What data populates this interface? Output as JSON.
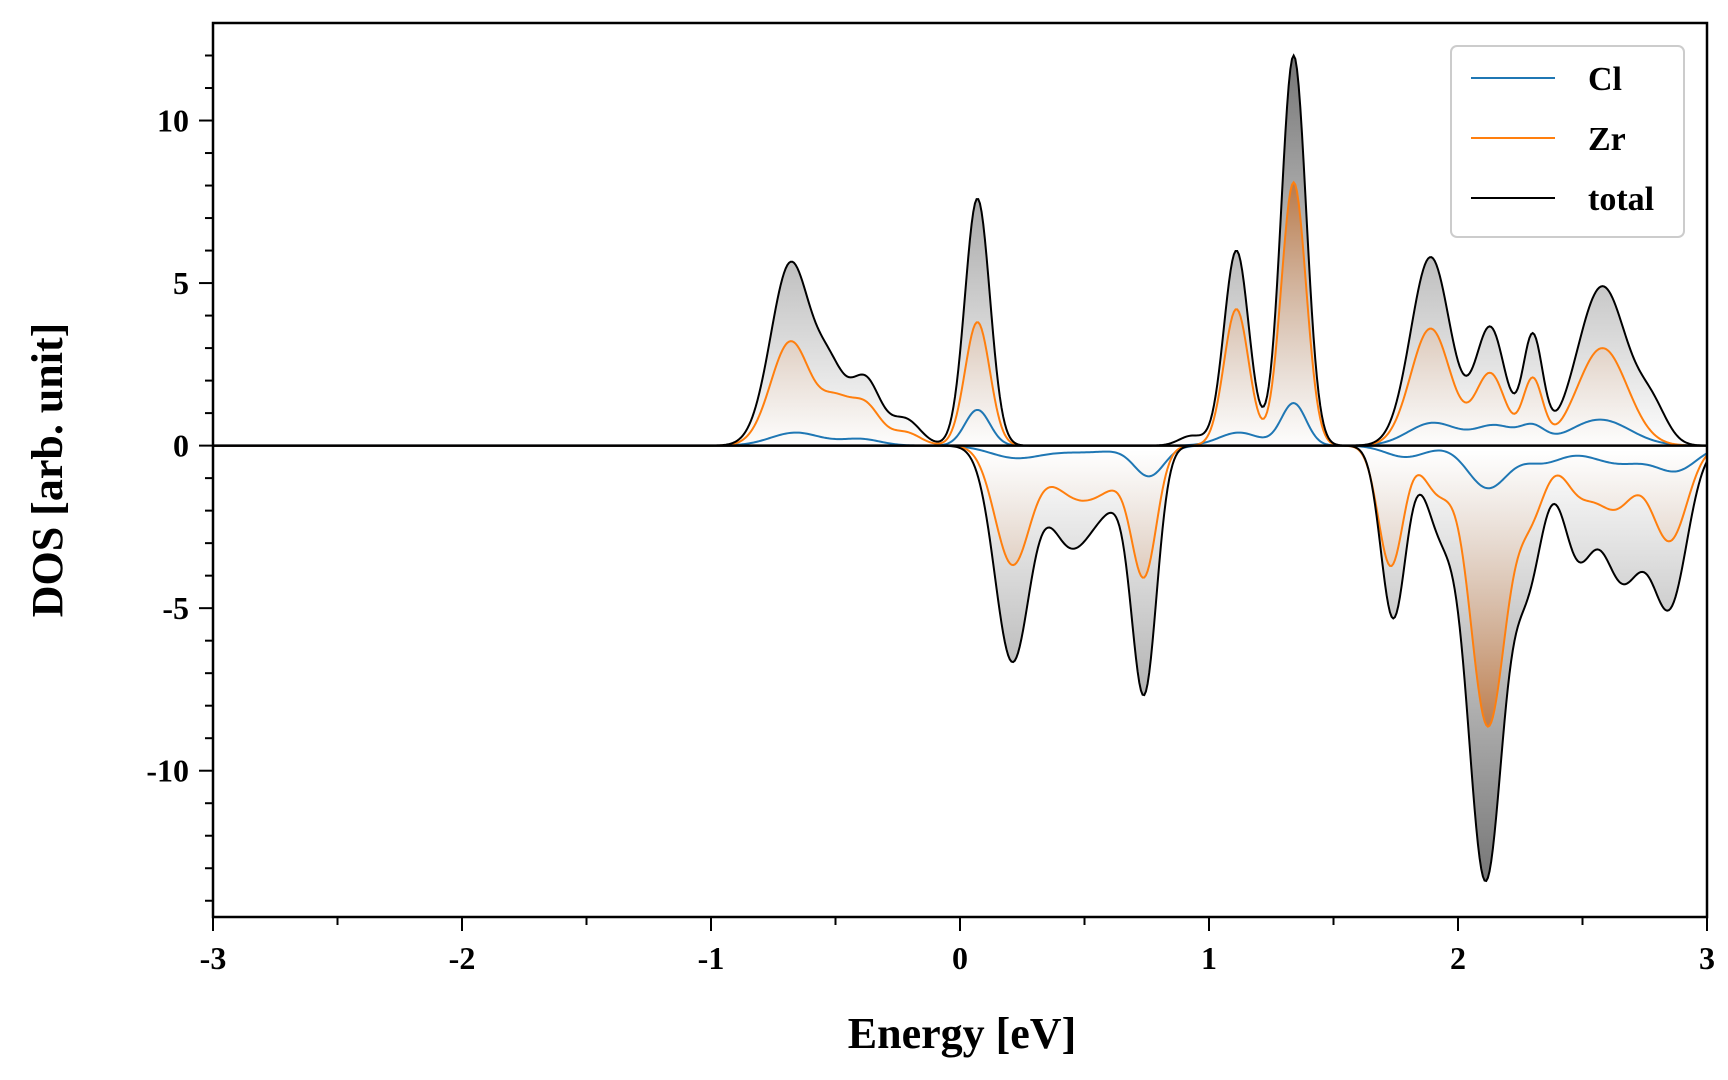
{
  "chart_data": {
    "type": "area",
    "xlabel": "Energy [eV]",
    "ylabel": "DOS [arb. unit]",
    "xlim": [
      -3,
      3
    ],
    "ylim": [
      -14.5,
      13
    ],
    "x_ticks": [
      -3,
      -2,
      -1,
      0,
      1,
      2,
      3
    ],
    "y_ticks": [
      10,
      5,
      0,
      -5,
      -10
    ],
    "legend": {
      "placement": "top-right",
      "entries": [
        "Cl",
        "Zr",
        "total"
      ]
    },
    "grid": false,
    "colors": {
      "Cl": "#1f77b4",
      "Zr": "#ff7f0e",
      "total": "#000000",
      "zr_fill": "#b8682a",
      "total_fill": "#7a7a7a"
    },
    "peaks": {
      "up": {
        "total": [
          [
            -0.68,
            5.6,
            0.08
          ],
          [
            -0.52,
            2.0,
            0.06
          ],
          [
            -0.38,
            2.0,
            0.06
          ],
          [
            -0.22,
            0.8,
            0.06
          ],
          [
            0.07,
            7.6,
            0.05
          ],
          [
            0.93,
            0.3,
            0.05
          ],
          [
            1.11,
            6.0,
            0.05
          ],
          [
            1.34,
            12.0,
            0.05
          ],
          [
            1.89,
            5.8,
            0.08
          ],
          [
            2.13,
            3.6,
            0.06
          ],
          [
            2.3,
            3.3,
            0.04
          ],
          [
            2.58,
            4.9,
            0.1
          ],
          [
            2.78,
            1.0,
            0.06
          ]
        ],
        "Zr": [
          [
            -0.68,
            3.2,
            0.08
          ],
          [
            -0.5,
            1.2,
            0.06
          ],
          [
            -0.38,
            1.2,
            0.06
          ],
          [
            -0.22,
            0.4,
            0.06
          ],
          [
            0.07,
            3.8,
            0.05
          ],
          [
            1.11,
            4.2,
            0.05
          ],
          [
            1.34,
            8.1,
            0.05
          ],
          [
            1.89,
            3.6,
            0.08
          ],
          [
            2.13,
            2.2,
            0.06
          ],
          [
            2.3,
            2.0,
            0.04
          ],
          [
            2.58,
            3.0,
            0.1
          ]
        ],
        "Cl": [
          [
            -0.66,
            0.4,
            0.1
          ],
          [
            -0.4,
            0.2,
            0.08
          ],
          [
            0.07,
            1.1,
            0.05
          ],
          [
            1.12,
            0.4,
            0.08
          ],
          [
            1.34,
            1.3,
            0.05
          ],
          [
            1.9,
            0.7,
            0.1
          ],
          [
            2.15,
            0.6,
            0.08
          ],
          [
            2.3,
            0.5,
            0.05
          ],
          [
            2.57,
            0.8,
            0.12
          ]
        ]
      },
      "down": {
        "total": [
          [
            0.21,
            6.6,
            0.07
          ],
          [
            0.43,
            2.5,
            0.08
          ],
          [
            0.58,
            1.7,
            0.1
          ],
          [
            0.74,
            7.2,
            0.05
          ],
          [
            1.74,
            5.3,
            0.05
          ],
          [
            1.93,
            2.5,
            0.06
          ],
          [
            2.11,
            13.3,
            0.07
          ],
          [
            2.28,
            4.0,
            0.06
          ],
          [
            2.48,
            3.2,
            0.06
          ],
          [
            2.66,
            4.1,
            0.08
          ],
          [
            2.85,
            4.8,
            0.07
          ]
        ],
        "Zr": [
          [
            0.21,
            3.6,
            0.07
          ],
          [
            0.45,
            1.3,
            0.1
          ],
          [
            0.6,
            0.9,
            0.1
          ],
          [
            0.74,
            3.7,
            0.05
          ],
          [
            1.73,
            3.7,
            0.05
          ],
          [
            1.92,
            1.4,
            0.06
          ],
          [
            2.12,
            8.6,
            0.07
          ],
          [
            2.29,
            2.1,
            0.06
          ],
          [
            2.48,
            1.2,
            0.06
          ],
          [
            2.63,
            1.9,
            0.08
          ],
          [
            2.85,
            2.9,
            0.07
          ]
        ],
        "Cl": [
          [
            0.22,
            0.35,
            0.1
          ],
          [
            0.5,
            0.2,
            0.15
          ],
          [
            0.76,
            0.9,
            0.06
          ],
          [
            1.79,
            0.35,
            0.08
          ],
          [
            2.12,
            1.3,
            0.08
          ],
          [
            2.34,
            0.5,
            0.08
          ],
          [
            2.65,
            0.55,
            0.12
          ],
          [
            2.88,
            0.7,
            0.08
          ]
        ]
      }
    }
  }
}
